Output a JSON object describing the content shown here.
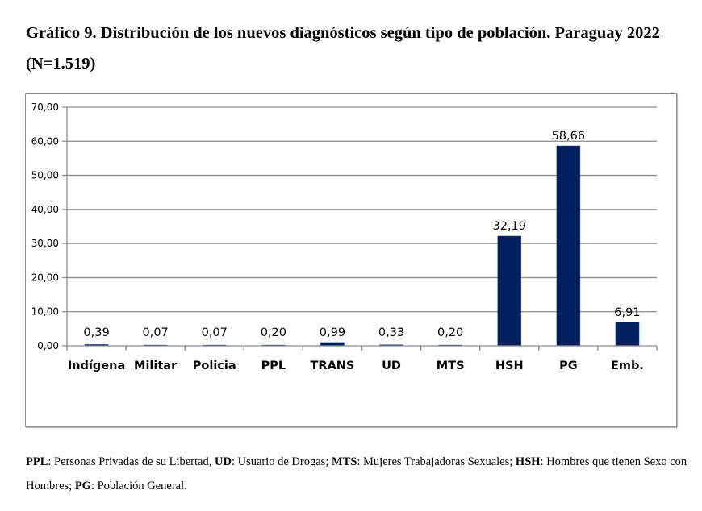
{
  "chart_data": {
    "type": "bar",
    "title": "Gráfico 9.  Distribución de los nuevos diagnósticos según tipo de población.  Paraguay 2022 (N=1.519)",
    "xlabel": "",
    "ylabel": "",
    "categories": [
      "Indígena",
      "Militar",
      "Policia",
      "PPL",
      "TRANS",
      "UD",
      "MTS",
      "HSH",
      "PG",
      "Emb."
    ],
    "values": [
      0.39,
      0.07,
      0.07,
      0.2,
      0.99,
      0.33,
      0.2,
      32.19,
      58.66,
      6.91
    ],
    "data_labels": [
      "0,39",
      "0,07",
      "0,07",
      "0,20",
      "0,99",
      "0,33",
      "0,20",
      "32,19",
      "58,66",
      "6,91"
    ],
    "ylim": [
      0,
      70
    ],
    "yticks": [
      0,
      10,
      20,
      30,
      40,
      50,
      60,
      70
    ],
    "ytick_labels": [
      "0,00",
      "10,00",
      "20,00",
      "30,00",
      "40,00",
      "50,00",
      "60,00",
      "70,00"
    ],
    "grid": true,
    "legend": "none",
    "bar_color": "#002060"
  },
  "header": {
    "title": "Gráfico 9.  Distribución de los nuevos diagnósticos según tipo de población.  Paraguay 2022 (N=1.519)"
  },
  "footnote": {
    "items": [
      {
        "abbr": "PPL",
        "text": ": Personas Privadas de su Libertad, "
      },
      {
        "abbr": "UD",
        "text": ": Usuario de Drogas; "
      },
      {
        "abbr": "MTS",
        "text": ": Mujeres Trabajadoras Sexuales; "
      },
      {
        "abbr": "HSH",
        "text": ": Hombres que tienen Sexo con Hombres; "
      },
      {
        "abbr": "PG",
        "text": ": Población General."
      }
    ]
  }
}
